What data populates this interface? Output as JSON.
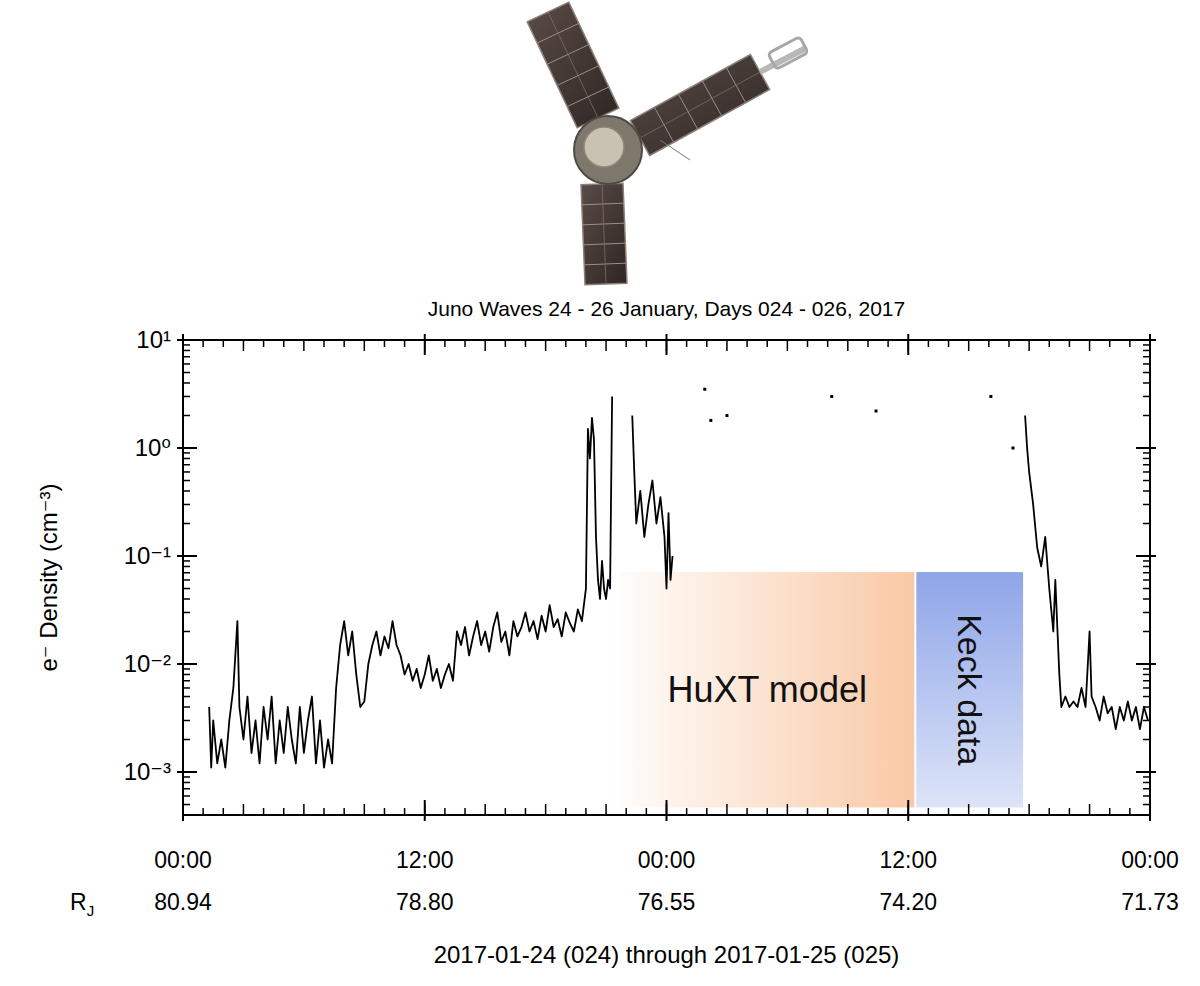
{
  "chart_data": {
    "type": "line",
    "title": "Juno Waves  24 - 26 January, Days 024 - 026, 2017",
    "y_label": "e⁻ Density (cm⁻³)",
    "x_label": "2017-01-24 (024) through 2017-01-25 (025)",
    "x_row_label": "R",
    "x_row_label_sub": "J",
    "x_row_labels": [
      "80.94",
      "78.80",
      "76.55",
      "74.20",
      "71.73"
    ],
    "log": "y",
    "grid": false,
    "color": "#000000",
    "xlim": [
      0,
      48
    ],
    "xticks": [
      {
        "value": 0,
        "label": "00:00"
      },
      {
        "value": 12,
        "label": "12:00"
      },
      {
        "value": 24,
        "label": "00:00"
      },
      {
        "value": 36,
        "label": "12:00"
      },
      {
        "value": 48,
        "label": "00:00"
      }
    ],
    "ylim": [
      0.0004,
      10
    ],
    "yticks": [
      {
        "value": 0.001,
        "label": "10⁻³"
      },
      {
        "value": 0.01,
        "label": "10⁻²"
      },
      {
        "value": 0.1,
        "label": "10⁻¹"
      },
      {
        "value": 1,
        "label": "10⁰"
      },
      {
        "value": 10,
        "label": "10¹"
      }
    ],
    "x": [
      1.3,
      1.4,
      1.5,
      1.7,
      1.9,
      2.1,
      2.3,
      2.5,
      2.7,
      2.8,
      3.0,
      3.2,
      3.4,
      3.6,
      3.8,
      4.0,
      4.2,
      4.4,
      4.6,
      4.8,
      5.0,
      5.2,
      5.4,
      5.6,
      5.8,
      6.0,
      6.2,
      6.4,
      6.6,
      6.8,
      7.0,
      7.2,
      7.4,
      7.6,
      7.8,
      8.0,
      8.2,
      8.4,
      8.6,
      8.8,
      9.0,
      9.2,
      9.4,
      9.6,
      9.8,
      10.0,
      10.2,
      10.4,
      10.6,
      10.8,
      11.0,
      11.2,
      11.4,
      11.6,
      11.8,
      12.0,
      12.2,
      12.4,
      12.6,
      12.8,
      13.0,
      13.2,
      13.4,
      13.6,
      13.8,
      14.0,
      14.2,
      14.4,
      14.6,
      14.8,
      15.0,
      15.2,
      15.4,
      15.6,
      15.8,
      16.0,
      16.2,
      16.4,
      16.6,
      16.8,
      17.0,
      17.2,
      17.4,
      17.6,
      17.8,
      18.0,
      18.2,
      18.4,
      18.6,
      18.8,
      19.0,
      19.2,
      19.4,
      19.6,
      19.8,
      20.0,
      20.1,
      20.2,
      20.3,
      20.4,
      20.5,
      20.6,
      20.7,
      20.8,
      20.9,
      21.0,
      21.1,
      21.2,
      21.3,
      21.8,
      22.3,
      22.4,
      22.5,
      22.7,
      22.9,
      23.1,
      23.3,
      23.5,
      23.7,
      23.9,
      24.0,
      24.1,
      24.2,
      24.3,
      25.0,
      25.9,
      26.0,
      26.2,
      26.5,
      27.0,
      29.0,
      32.2,
      33.0,
      34.4,
      35.0,
      40.1,
      40.5,
      41.2,
      41.5,
      41.8,
      41.9,
      42.0,
      42.2,
      42.4,
      42.6,
      42.8,
      43.0,
      43.2,
      43.3,
      43.5,
      43.6,
      43.8,
      44.0,
      44.2,
      44.4,
      44.6,
      44.8,
      45.0,
      45.1,
      45.3,
      45.5,
      45.7,
      45.9,
      46.1,
      46.3,
      46.5,
      46.7,
      46.9,
      47.1,
      47.3,
      47.5,
      47.7,
      47.9
    ],
    "values": [
      0.004,
      0.0011,
      0.003,
      0.0012,
      0.002,
      0.0011,
      0.003,
      0.006,
      0.025,
      0.004,
      0.002,
      0.005,
      0.0015,
      0.003,
      0.0012,
      0.004,
      0.002,
      0.005,
      0.0012,
      0.003,
      0.0015,
      0.004,
      0.002,
      0.0012,
      0.004,
      0.0015,
      0.003,
      0.005,
      0.0012,
      0.003,
      0.0011,
      0.002,
      0.0012,
      0.006,
      0.015,
      0.025,
      0.012,
      0.02,
      0.008,
      0.004,
      0.0045,
      0.01,
      0.015,
      0.02,
      0.012,
      0.018,
      0.014,
      0.025,
      0.015,
      0.012,
      0.008,
      0.01,
      0.007,
      0.009,
      0.006,
      0.008,
      0.012,
      0.007,
      0.009,
      0.006,
      0.008,
      0.01,
      0.007,
      0.02,
      0.015,
      0.022,
      0.012,
      0.018,
      0.025,
      0.015,
      0.02,
      0.013,
      0.022,
      0.03,
      0.016,
      0.02,
      0.012,
      0.025,
      0.018,
      0.022,
      0.03,
      0.02,
      0.025,
      0.017,
      0.028,
      0.02,
      0.035,
      0.022,
      0.026,
      0.018,
      0.03,
      0.024,
      0.02,
      0.032,
      0.025,
      0.05,
      1.5,
      0.8,
      1.9,
      1.2,
      0.15,
      0.06,
      0.04,
      0.09,
      0.05,
      0.04,
      0.06,
      0.05,
      3.0,
      null,
      2.0,
      0.6,
      0.2,
      0.4,
      0.15,
      0.3,
      0.5,
      0.2,
      0.35,
      0.15,
      0.05,
      0.25,
      0.06,
      0.1,
      null,
      3.5,
      null,
      1.8,
      null,
      2.0,
      null,
      3.0,
      null,
      2.2,
      null,
      3.0,
      null,
      1.0,
      null,
      2.0,
      1.0,
      0.6,
      0.3,
      0.12,
      0.08,
      0.15,
      0.05,
      0.02,
      0.06,
      0.008,
      0.004,
      0.005,
      0.004,
      0.0045,
      0.004,
      0.006,
      0.004,
      0.02,
      0.005,
      0.004,
      0.003,
      0.005,
      0.0035,
      0.004,
      0.0025,
      0.004,
      0.003,
      0.0045,
      0.003,
      0.004,
      0.0025,
      0.004,
      0.003
    ],
    "regions": [
      {
        "label": "HuXT model",
        "x": [
          21.7,
          36.3
        ],
        "y": [
          0.00047,
          0.071
        ],
        "color": "#f8c39c"
      },
      {
        "label": "Keck data",
        "x": [
          36.4,
          41.7
        ],
        "y": [
          0.00047,
          0.071
        ],
        "color": "#8ea5e8"
      }
    ]
  }
}
